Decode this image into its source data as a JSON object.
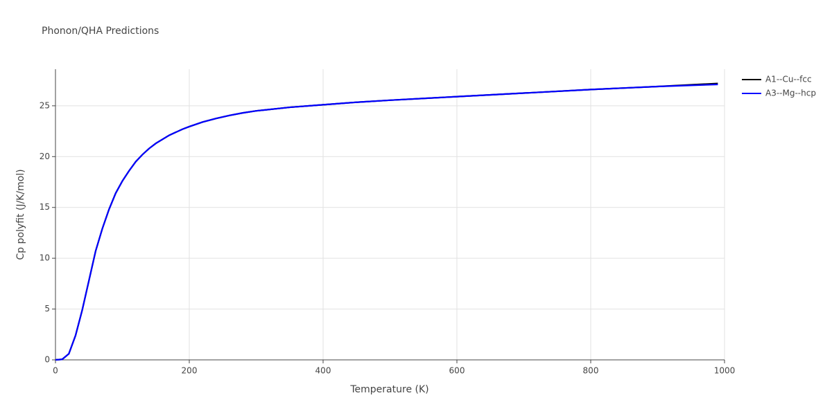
{
  "chart_data": {
    "type": "line",
    "title": "Phonon/QHA Predictions",
    "x_label": "Temperature (K)",
    "y_label": "Cp polyfit (J/K/mol)",
    "x": [
      0,
      10,
      20,
      30,
      40,
      50,
      60,
      70,
      80,
      90,
      100,
      110,
      120,
      130,
      140,
      150,
      160,
      170,
      180,
      190,
      200,
      220,
      240,
      260,
      280,
      300,
      350,
      400,
      450,
      500,
      600,
      700,
      800,
      900,
      990
    ],
    "series": [
      {
        "name": "A1--Cu--fcc",
        "color": "#000000",
        "values": [
          0,
          0.05,
          0.6,
          2.4,
          4.9,
          7.8,
          10.7,
          12.9,
          14.8,
          16.4,
          17.6,
          18.6,
          19.5,
          20.2,
          20.8,
          21.3,
          21.7,
          22.1,
          22.4,
          22.7,
          22.95,
          23.4,
          23.75,
          24.05,
          24.3,
          24.5,
          24.85,
          25.1,
          25.35,
          25.55,
          25.9,
          26.25,
          26.6,
          26.9,
          27.2
        ]
      },
      {
        "name": "A3--Mg--hcp",
        "color": "#0000ff",
        "values": [
          0,
          0.05,
          0.6,
          2.4,
          4.9,
          7.8,
          10.7,
          12.9,
          14.8,
          16.4,
          17.6,
          18.6,
          19.5,
          20.2,
          20.8,
          21.3,
          21.7,
          22.1,
          22.4,
          22.7,
          22.95,
          23.4,
          23.75,
          24.05,
          24.3,
          24.5,
          24.85,
          25.1,
          25.35,
          25.55,
          25.9,
          26.25,
          26.6,
          26.9,
          27.1
        ]
      }
    ],
    "xlim": [
      0,
      1000
    ],
    "xticks": [
      0,
      200,
      400,
      600,
      800,
      1000
    ],
    "ylim": [
      0,
      28.6
    ],
    "yticks": [
      0,
      5,
      10,
      15,
      20,
      25
    ],
    "grid": true,
    "legend": "outside-right"
  }
}
